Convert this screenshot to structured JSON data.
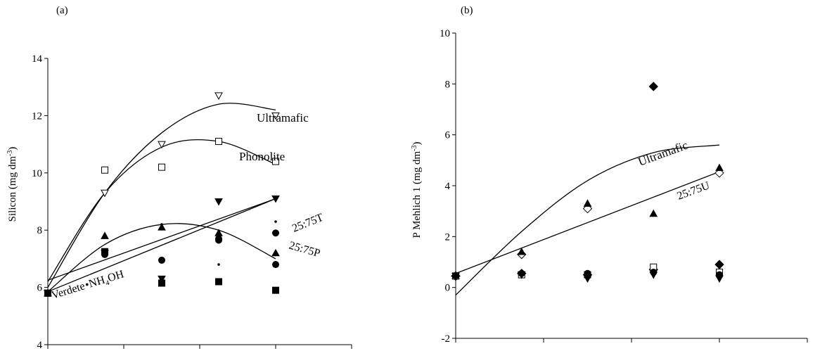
{
  "chart_data": [
    {
      "panel_label": "(a)",
      "type": "scatter",
      "ylabel_main": "Silicon (mg dm",
      "ylabel_sup": "-3",
      "ylabel_tail": ")",
      "ylim": [
        4,
        14
      ],
      "yticks": [
        4,
        6,
        8,
        10,
        12,
        14
      ],
      "x_positions": [
        0,
        1,
        2,
        3,
        4
      ],
      "xlim": [
        0,
        4
      ],
      "grid": false,
      "annotations": {
        "ultramafic": "Ultramafic",
        "phonolite": "Phonolite",
        "t2575": "25:75T",
        "p2575": "25:75P",
        "verdete_main": "Verdete",
        "verdete_tail": "NH",
        "verdete_sub": "4",
        "verdete_end": "OH"
      },
      "series": [
        {
          "marker": "triangle-down-open",
          "x": [
            0,
            0.75,
            1.5,
            2.25,
            3
          ],
          "y": [
            5.8,
            9.3,
            11.0,
            12.7,
            12.0
          ]
        },
        {
          "marker": "square-open",
          "x": [
            0,
            0.75,
            1.5,
            2.25,
            3
          ],
          "y": [
            5.8,
            10.1,
            10.2,
            11.1,
            10.4
          ]
        },
        {
          "marker": "triangle-down-filled",
          "x": [
            0,
            0.75,
            1.5,
            2.25,
            3
          ],
          "y": [
            5.8,
            7.2,
            6.3,
            9.0,
            9.1
          ]
        },
        {
          "marker": "triangle-up-filled",
          "x": [
            0,
            0.75,
            1.5,
            2.25,
            3
          ],
          "y": [
            5.8,
            7.8,
            8.1,
            7.9,
            7.2
          ]
        },
        {
          "marker": "circle-filled",
          "x": [
            0,
            0.75,
            1.5,
            2.25,
            2.25,
            3,
            3
          ],
          "y": [
            5.8,
            7.15,
            6.95,
            7.65,
            7.7,
            7.9,
            6.8
          ]
        },
        {
          "marker": "square-filled",
          "x": [
            0,
            0.75,
            1.5,
            2.25,
            3
          ],
          "y": [
            5.8,
            7.25,
            6.15,
            6.2,
            5.9
          ]
        },
        {
          "marker": "dot-small",
          "x": [
            1.5,
            2.25,
            3
          ],
          "y": [
            8.2,
            6.8,
            8.3
          ]
        }
      ],
      "fits": [
        {
          "name": "Ultramafic",
          "x": [
            0,
            0.75,
            1.5,
            2.25,
            3
          ],
          "y": [
            6.0,
            9.3,
            11.4,
            12.4,
            12.2
          ]
        },
        {
          "name": "Phonolite",
          "x": [
            0,
            0.75,
            1.5,
            2.25,
            3
          ],
          "y": [
            6.2,
            9.3,
            10.9,
            11.1,
            10.3
          ]
        },
        {
          "name": "25:75T",
          "x": [
            0,
            3
          ],
          "y": [
            5.85,
            9.1
          ]
        },
        {
          "name": "Verdete",
          "x": [
            0,
            3
          ],
          "y": [
            6.25,
            9.1
          ]
        },
        {
          "name": "25:75P",
          "x": [
            0,
            0.75,
            1.5,
            2.25,
            3
          ],
          "y": [
            5.85,
            7.5,
            8.2,
            8.0,
            7.0
          ]
        }
      ]
    },
    {
      "panel_label": "(b)",
      "type": "scatter",
      "ylabel_main": "P Mehlich 1 (mg dm",
      "ylabel_sup": "-3",
      "ylabel_tail": ")",
      "ylim": [
        -2,
        10
      ],
      "yticks": [
        -2,
        0,
        2,
        4,
        6,
        8,
        10
      ],
      "x_positions": [
        0,
        1,
        2,
        3,
        4
      ],
      "xlim": [
        0,
        4
      ],
      "grid": false,
      "annotations": {
        "ultramafic": "Ultramafic",
        "u2575": "25:75U"
      },
      "series": [
        {
          "marker": "diamond-filled",
          "x": [
            0,
            0.75,
            1.5,
            2.25,
            3
          ],
          "y": [
            0.45,
            0.55,
            0.5,
            7.9,
            0.9
          ]
        },
        {
          "marker": "diamond-open",
          "x": [
            0,
            0.75,
            1.5,
            2.25,
            3
          ],
          "y": [
            0.45,
            1.3,
            3.1,
            0.7,
            4.5
          ]
        },
        {
          "marker": "triangle-up-filled",
          "x": [
            0,
            0.75,
            1.5,
            2.25,
            3
          ],
          "y": [
            0.45,
            1.4,
            3.3,
            2.9,
            4.7
          ]
        },
        {
          "marker": "square-open",
          "x": [
            0,
            0.75,
            1.5,
            2.25,
            3
          ],
          "y": [
            0.45,
            0.5,
            0.5,
            0.8,
            0.6
          ]
        },
        {
          "marker": "circle-filled",
          "x": [
            0,
            0.75,
            1.5,
            2.25,
            3
          ],
          "y": [
            0.45,
            0.55,
            0.55,
            0.6,
            0.5
          ]
        },
        {
          "marker": "triangle-down-filled",
          "x": [
            0,
            0.75,
            1.5,
            2.25,
            3
          ],
          "y": [
            0.45,
            0.5,
            0.35,
            0.5,
            0.35
          ]
        }
      ],
      "fits": [
        {
          "name": "Ultramafic",
          "x": [
            0,
            0.75,
            1.5,
            2.25,
            3
          ],
          "y": [
            -0.3,
            2.2,
            4.2,
            5.3,
            5.6
          ]
        },
        {
          "name": "25:75U",
          "x": [
            0,
            3
          ],
          "y": [
            0.55,
            4.55
          ]
        }
      ]
    }
  ]
}
